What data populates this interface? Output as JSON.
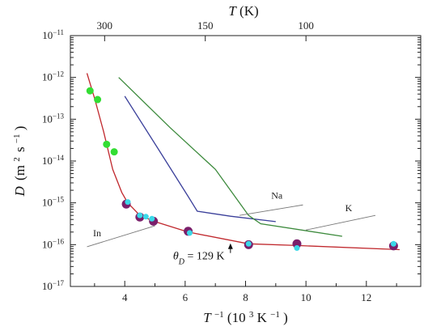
{
  "chart_data": {
    "type": "line",
    "x_axis": {
      "label_main": "T",
      "label_sup": "−1",
      "label_units": "(10",
      "label_units_sup": "3",
      "label_units_tail": "K",
      "label_units_tail_sup": "−1",
      "label_close": ")",
      "ticks": [
        4,
        6,
        8,
        10,
        12
      ],
      "tick_labels": [
        "4",
        "6",
        "8",
        "10",
        "12"
      ],
      "range": [
        2.2,
        13.8
      ]
    },
    "y_axis": {
      "scale": "log",
      "label_main": "D",
      "label_units": "(m",
      "label_units_sup": "2",
      "label_units_tail": "s",
      "label_units_tail_sup": "−1",
      "label_close": ")",
      "range_exp": [
        -17,
        -11
      ],
      "tick_exponents": [
        -17,
        -16,
        -15,
        -14,
        -13,
        -12,
        -11
      ],
      "tick_labels": [
        "10",
        "10",
        "10",
        "10",
        "10",
        "10",
        "10"
      ],
      "tick_sups": [
        "−17",
        "−16",
        "−15",
        "−14",
        "−13",
        "−12",
        "−11"
      ]
    },
    "top_axis": {
      "label_main": "T",
      "label_units": " (K)",
      "ticks_T": [
        300,
        150,
        100
      ],
      "tick_labels": [
        "300",
        "150",
        "100"
      ]
    },
    "series": [
      {
        "name": "Na",
        "kind": "line",
        "color": "#3a3f9a",
        "points": [
          [
            4.0,
            -12.45
          ],
          [
            5.1,
            -13.7
          ],
          [
            6.1,
            -14.85
          ],
          [
            6.4,
            -15.2
          ],
          [
            7.5,
            -15.32
          ],
          [
            9.0,
            -15.45
          ]
        ]
      },
      {
        "name": "K",
        "kind": "line",
        "color": "#3c8a3c",
        "points": [
          [
            3.8,
            -12.0
          ],
          [
            5.5,
            -13.2
          ],
          [
            7.0,
            -14.2
          ],
          [
            8.1,
            -15.3
          ],
          [
            8.5,
            -15.5
          ],
          [
            11.2,
            -15.8
          ]
        ]
      },
      {
        "name": "In",
        "kind": "line",
        "color": "#c0282d",
        "points": [
          [
            2.75,
            -11.9
          ],
          [
            3.0,
            -12.5
          ],
          [
            3.3,
            -13.3
          ],
          [
            3.6,
            -14.2
          ],
          [
            3.9,
            -14.75
          ],
          [
            4.1,
            -15.0
          ],
          [
            4.5,
            -15.3
          ],
          [
            5.0,
            -15.45
          ],
          [
            6.1,
            -15.7
          ],
          [
            8.1,
            -15.98
          ],
          [
            9.7,
            -16.02
          ],
          [
            13.1,
            -16.12
          ]
        ]
      },
      {
        "name": "",
        "kind": "scatter",
        "marker": "green-dot",
        "color": "#33dd33",
        "points": [
          [
            2.85,
            -12.32
          ],
          [
            3.1,
            -12.53
          ],
          [
            3.4,
            -13.6
          ],
          [
            3.65,
            -13.78
          ]
        ]
      },
      {
        "name": "",
        "kind": "scatter",
        "marker": "purple-dot",
        "color": "#7a1f6b",
        "points": [
          [
            4.05,
            -15.03
          ],
          [
            4.5,
            -15.34
          ],
          [
            4.95,
            -15.44
          ],
          [
            6.1,
            -15.68
          ],
          [
            8.1,
            -16.0
          ],
          [
            9.7,
            -15.98
          ],
          [
            12.9,
            -16.03
          ]
        ]
      },
      {
        "name": "",
        "kind": "scatter",
        "marker": "cyan-dot",
        "color": "#3bd8e8",
        "points": [
          [
            4.1,
            -14.98
          ],
          [
            4.5,
            -15.3
          ],
          [
            4.7,
            -15.33
          ],
          [
            4.9,
            -15.38
          ],
          [
            6.15,
            -15.72
          ],
          [
            8.1,
            -15.98
          ],
          [
            9.7,
            -16.08
          ],
          [
            12.9,
            -15.98
          ]
        ]
      }
    ],
    "series_labels": [
      {
        "name": "Na",
        "text": "Na",
        "at": [
          8.85,
          -14.9
        ],
        "leader": [
          [
            7.8,
            -15.3
          ],
          [
            9.9,
            -15.05
          ]
        ]
      },
      {
        "name": "K",
        "text": "K",
        "at": [
          11.3,
          -15.2
        ],
        "leader": [
          [
            10.0,
            -15.65
          ],
          [
            12.3,
            -15.3
          ]
        ]
      },
      {
        "name": "In",
        "text": "In",
        "at": [
          2.95,
          -15.8
        ],
        "leader": [
          [
            2.75,
            -16.05
          ],
          [
            5.0,
            -15.55
          ]
        ]
      }
    ],
    "annotation": {
      "theta": "θ",
      "sub": "D",
      "text": " = 129 K",
      "at": [
        5.6,
        -16.35
      ],
      "arrow_x": 7.5,
      "arrow_from": -16.2,
      "arrow_to": -15.97
    }
  }
}
